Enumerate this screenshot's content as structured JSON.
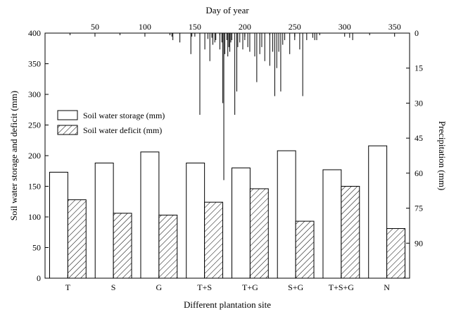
{
  "chart_data": {
    "type": "bar",
    "title": "",
    "xlabel": "Different plantation site",
    "ylabel": "Soil water storage and deficit (mm)",
    "ylim": [
      0,
      400
    ],
    "yticks": [
      "0",
      "50",
      "100",
      "150",
      "200",
      "250",
      "300",
      "350",
      "400"
    ],
    "categories": [
      "T",
      "S",
      "G",
      "T+S",
      "T+G",
      "S+G",
      "T+S+G",
      "N"
    ],
    "series": [
      {
        "name": "Soil water storage (mm)",
        "values": [
          173,
          188,
          206,
          188,
          180,
          208,
          177,
          216
        ]
      },
      {
        "name": "Soil water deficit (mm)",
        "values": [
          128,
          106,
          103,
          124,
          146,
          93,
          150,
          81
        ]
      }
    ],
    "legend_position": "upper-left",
    "top_axis": {
      "label": "Day of year",
      "range": [
        0,
        365
      ],
      "ticks": [
        "50",
        "100",
        "150",
        "200",
        "250",
        "300",
        "350"
      ]
    },
    "right_axis": {
      "label": "Precipitation (mm)",
      "range": [
        0,
        105
      ],
      "inverted": true,
      "ticks": [
        "0",
        "15",
        "30",
        "45",
        "60",
        "75",
        "90"
      ]
    },
    "precipitation": {
      "days": [
        127,
        128,
        135,
        146,
        147,
        155,
        160,
        163,
        165,
        167,
        168,
        170,
        171,
        175,
        177,
        178,
        179,
        180,
        182,
        183,
        184,
        185,
        186,
        187,
        190,
        192,
        193,
        195,
        198,
        200,
        203,
        205,
        210,
        212,
        215,
        217,
        220,
        225,
        228,
        230,
        232,
        234,
        236,
        238,
        240,
        245,
        250,
        255,
        258,
        262,
        268,
        270,
        272,
        305,
        308
      ],
      "values": [
        1.5,
        3,
        4,
        9,
        1.5,
        35,
        7,
        2.5,
        12,
        2,
        5,
        4,
        3,
        7,
        4,
        30,
        63,
        9,
        3,
        10,
        6,
        8,
        4,
        3,
        35,
        25,
        6,
        4,
        7,
        3,
        6,
        8,
        10,
        21,
        9,
        6,
        12,
        14,
        8,
        27,
        15,
        8,
        25,
        5,
        3,
        9,
        3,
        7,
        27,
        3,
        2,
        3,
        3,
        2,
        3
      ]
    }
  }
}
